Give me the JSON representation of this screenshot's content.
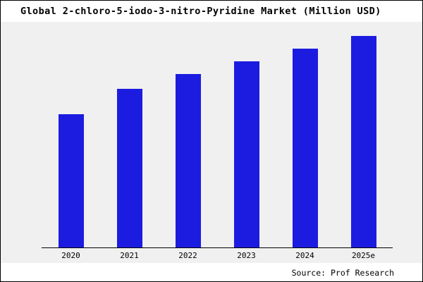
{
  "chart_data": {
    "type": "bar",
    "title": "Global 2-chloro-5-iodo-3-nitro-Pyridine Market (Million USD)",
    "categories": [
      "2020",
      "2021",
      "2022",
      "2023",
      "2024",
      "2025e"
    ],
    "values": [
      63,
      75,
      82,
      88,
      94,
      100
    ],
    "xlabel": "",
    "ylabel": "",
    "ylim": [
      0,
      106
    ],
    "grid": false,
    "legend": false,
    "bar_color": "#1c1ce0",
    "plot_background": "#f0f0f0",
    "axis_color": "#000000"
  },
  "source": "Source: Prof Research"
}
